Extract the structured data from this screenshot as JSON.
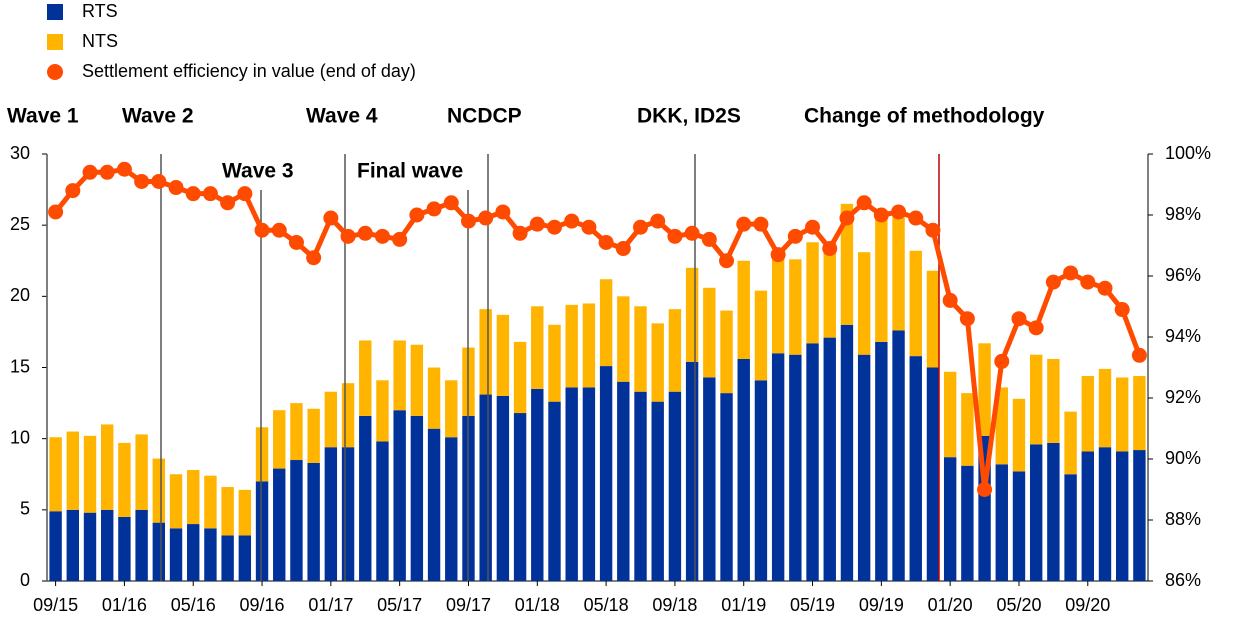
{
  "chart_data": {
    "type": "bar",
    "stacked": true,
    "categories": [
      "09/15",
      null,
      null,
      null,
      "01/16",
      null,
      null,
      null,
      "05/16",
      null,
      null,
      null,
      "09/16",
      null,
      null,
      null,
      "01/17",
      null,
      null,
      null,
      "05/17",
      null,
      null,
      null,
      "09/17",
      null,
      null,
      null,
      "01/18",
      null,
      null,
      null,
      "05/18",
      null,
      null,
      null,
      "09/18",
      null,
      null,
      null,
      "01/19",
      null,
      null,
      null,
      "05/19",
      null,
      null,
      null,
      "09/19",
      null,
      null,
      null,
      "01/20",
      null,
      null,
      null,
      "05/20",
      null,
      null,
      null,
      "09/20",
      null,
      null,
      null
    ],
    "series": [
      {
        "name": "RTS",
        "type": "bar",
        "color": "#003299",
        "values": [
          4.9,
          5.0,
          4.8,
          5.0,
          4.5,
          5.0,
          4.1,
          3.7,
          4.0,
          3.7,
          3.2,
          3.2,
          7.0,
          7.9,
          8.5,
          8.3,
          9.4,
          9.4,
          11.6,
          9.8,
          12.0,
          11.6,
          10.7,
          10.1,
          11.6,
          13.1,
          13.0,
          11.8,
          13.5,
          12.6,
          13.6,
          13.6,
          15.1,
          14.0,
          13.3,
          12.6,
          13.3,
          15.4,
          14.3,
          13.2,
          15.6,
          14.1,
          16.0,
          15.9,
          16.7,
          17.1,
          18.0,
          15.9,
          16.8,
          17.6,
          15.8,
          15.0,
          8.7,
          8.1,
          10.2,
          8.2,
          7.7,
          9.6,
          9.7,
          7.5,
          9.1,
          9.4,
          9.1,
          9.2
        ]
      },
      {
        "name": "NTS",
        "type": "bar",
        "color": "#FFB400",
        "values": [
          5.2,
          5.5,
          5.4,
          6.0,
          5.2,
          5.3,
          4.5,
          3.8,
          3.8,
          3.7,
          3.4,
          3.2,
          3.8,
          4.1,
          4.0,
          3.8,
          3.9,
          4.5,
          5.3,
          4.3,
          4.9,
          5.0,
          4.3,
          4.0,
          4.8,
          6.0,
          5.7,
          5.0,
          5.8,
          5.4,
          5.8,
          5.9,
          6.1,
          6.0,
          6.0,
          5.5,
          5.8,
          6.6,
          6.3,
          5.8,
          6.9,
          6.3,
          6.6,
          6.7,
          7.1,
          6.7,
          8.5,
          7.2,
          9.0,
          8.3,
          7.4,
          6.8,
          6.0,
          5.1,
          6.5,
          5.4,
          5.1,
          6.3,
          5.9,
          4.4,
          5.3,
          5.5,
          5.2,
          5.2
        ]
      },
      {
        "name": "Settlement efficiency in value (end of day)",
        "type": "line",
        "axis": "y2",
        "color": "#FF4B00",
        "values": [
          98.1,
          98.8,
          99.4,
          99.4,
          99.5,
          99.1,
          99.1,
          98.9,
          98.7,
          98.7,
          98.4,
          98.7,
          97.5,
          97.5,
          97.1,
          96.6,
          97.9,
          97.3,
          97.4,
          97.3,
          97.2,
          98.0,
          98.2,
          98.4,
          97.8,
          97.9,
          98.1,
          97.4,
          97.7,
          97.6,
          97.8,
          97.6,
          97.1,
          96.9,
          97.6,
          97.8,
          97.3,
          97.4,
          97.2,
          96.5,
          97.7,
          97.7,
          96.7,
          97.3,
          97.6,
          96.9,
          97.9,
          98.4,
          98.0,
          98.1,
          97.9,
          97.5,
          95.2,
          94.6,
          89.0,
          93.2,
          94.6,
          94.3,
          95.8,
          96.1,
          95.8,
          95.6,
          94.9,
          93.4
        ]
      }
    ],
    "ylim": [
      0,
      30
    ],
    "yticks": [
      0,
      5,
      10,
      15,
      20,
      25,
      30
    ],
    "y2lim": [
      86,
      100
    ],
    "y2ticks": [
      {
        "value": 86,
        "label": "86%"
      },
      {
        "value": 88,
        "label": "88%"
      },
      {
        "value": 90,
        "label": "90%"
      },
      {
        "value": 92,
        "label": "92%"
      },
      {
        "value": 94,
        "label": "94%"
      },
      {
        "value": 96,
        "label": "96%"
      },
      {
        "value": 98,
        "label": "98%"
      },
      {
        "value": 100,
        "label": "100%"
      }
    ],
    "annotations": [
      "Wave 1",
      "Wave 2",
      "Wave 3",
      "Wave 4",
      "Final wave",
      "NCDCP",
      "DKK, ID2S",
      "Change of methodology"
    ],
    "legend": "top-left",
    "grid": false
  }
}
